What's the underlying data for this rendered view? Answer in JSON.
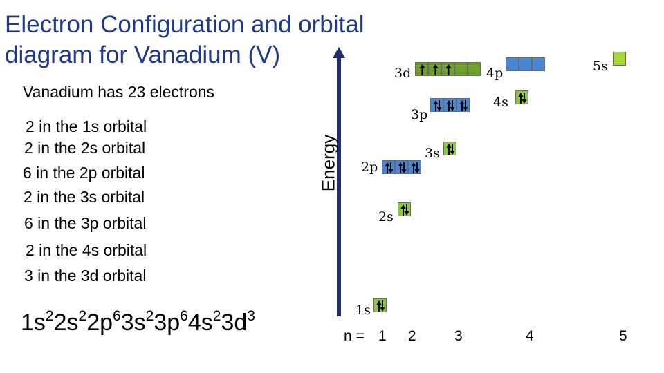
{
  "title": {
    "line1": "Electron Configuration and orbital",
    "line2": "diagram for Vanadium (V)"
  },
  "intro": "Vanadium has 23 electrons",
  "counts": [
    "2 in the 1s orbital",
    "2 in the 2s orbital",
    "6 in the 2p orbital",
    "2 in the 3s orbital",
    "6 in the 3p orbital",
    "2 in the 4s orbital",
    "3 in the 3d orbital"
  ],
  "configuration": [
    {
      "term": "1s",
      "sup": "2"
    },
    {
      "term": "2s",
      "sup": "2"
    },
    {
      "term": "2p",
      "sup": "6"
    },
    {
      "term": "3s",
      "sup": "2"
    },
    {
      "term": "3p",
      "sup": "6"
    },
    {
      "term": "4s",
      "sup": "2"
    },
    {
      "term": "3d",
      "sup": "3"
    }
  ],
  "energy_label": "Energy",
  "colors": {
    "title": "#1f3a8a",
    "axis": "#1f2d6e",
    "s_box": "#8dc63f",
    "p_box": "#4a86d4",
    "d_box": "#6e9e2e",
    "empty_s": "#a6d839",
    "arrow": "#000000"
  },
  "orbitals": [
    {
      "label": "1s",
      "type": "s",
      "electrons": [
        2
      ]
    },
    {
      "label": "2s",
      "type": "s",
      "electrons": [
        2
      ]
    },
    {
      "label": "2p",
      "type": "p",
      "electrons": [
        2,
        2,
        2
      ]
    },
    {
      "label": "3s",
      "type": "s",
      "electrons": [
        2
      ]
    },
    {
      "label": "3p",
      "type": "p",
      "electrons": [
        2,
        2,
        2
      ]
    },
    {
      "label": "4s",
      "type": "s",
      "electrons": [
        2
      ]
    },
    {
      "label": "3d",
      "type": "d",
      "electrons": [
        1,
        1,
        1,
        0,
        0
      ]
    },
    {
      "label": "4p",
      "type": "p",
      "electrons": [
        0,
        0,
        0
      ]
    },
    {
      "label": "5s",
      "type": "s",
      "electrons": [
        0
      ]
    }
  ],
  "n_axis": {
    "label": "n =",
    "values": [
      "1",
      "2",
      "3",
      "4",
      "5"
    ]
  }
}
